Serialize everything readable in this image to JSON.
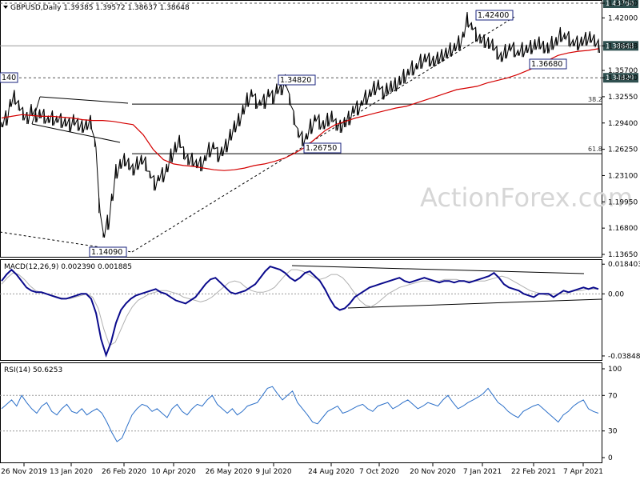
{
  "header": {
    "main": "GBPUSD,Daily  1.39385 1.39572 1.38637 1.38648",
    "macd": "MACD(12,26,9) 0.002390 0.001885",
    "rsi": "RSI(14) 50.6253"
  },
  "watermark": "ActionForex.com",
  "colors": {
    "price": "#000000",
    "ema": "#d40000",
    "macd": "#0a0a8c",
    "signal": "#b0b0b0",
    "rsi": "#2b6fc8",
    "tag": "#2f4f4f"
  },
  "chart_data": [
    {
      "type": "line",
      "panel": "price",
      "title": "GBPUSD,Daily",
      "ohlc_last": {
        "open": 1.39385,
        "high": 1.39572,
        "low": 1.38637,
        "close": 1.38648
      },
      "ylim": [
        1.1365,
        1.4376
      ],
      "y_ticks": [
        "1.43760",
        "1.42000",
        "1.38648",
        "1.35700",
        "1.34820",
        "1.32550",
        "1.29400",
        "1.26250",
        "1.23100",
        "1.19950",
        "1.16800",
        "1.13650"
      ],
      "x_ticks": [
        "26 Nov 2019",
        "13 Jan 2020",
        "26 Feb 2020",
        "10 Apr 2020",
        "26 May 2020",
        "9 Jul 2020",
        "24 Aug 2020",
        "7 Oct 2020",
        "20 Nov 2020",
        "7 Jan 2021",
        "22 Feb 2021",
        "7 Apr 2021"
      ],
      "series": [
        {
          "values": [
            1.292,
            1.3,
            1.318,
            1.325,
            1.315,
            1.305,
            1.3,
            1.31,
            1.303,
            1.305,
            1.302,
            1.298,
            1.3,
            1.298,
            1.297,
            1.295,
            1.292,
            1.298,
            1.292,
            1.29,
            1.292,
            1.295,
            1.27,
            1.195,
            1.16,
            1.175,
            1.205,
            1.236,
            1.245,
            1.25,
            1.245,
            1.238,
            1.246,
            1.25,
            1.245,
            1.232,
            1.222,
            1.228,
            1.232,
            1.24,
            1.255,
            1.265,
            1.272,
            1.258,
            1.25,
            1.25,
            1.245,
            1.245,
            1.252,
            1.262,
            1.267,
            1.256,
            1.26,
            1.267,
            1.28,
            1.29,
            1.298,
            1.31,
            1.322,
            1.33,
            1.32,
            1.318,
            1.32,
            1.33,
            1.325,
            1.335,
            1.335,
            1.345,
            1.322,
            1.3,
            1.282,
            1.275,
            1.278,
            1.29,
            1.3,
            1.295,
            1.292,
            1.298,
            1.302,
            1.292,
            1.29,
            1.295,
            1.3,
            1.31,
            1.312,
            1.318,
            1.325,
            1.33,
            1.336,
            1.34,
            1.33,
            1.335,
            1.338,
            1.34,
            1.345,
            1.35,
            1.355,
            1.36,
            1.362,
            1.368,
            1.372,
            1.37,
            1.368,
            1.372,
            1.375,
            1.378,
            1.382,
            1.385,
            1.39,
            1.4,
            1.418,
            1.41,
            1.4,
            1.395,
            1.392,
            1.39,
            1.388,
            1.378,
            1.373,
            1.38,
            1.385,
            1.382,
            1.378,
            1.382,
            1.383,
            1.385,
            1.388,
            1.39,
            1.385,
            1.384,
            1.39,
            1.392,
            1.4,
            1.398,
            1.395,
            1.39,
            1.39,
            1.392,
            1.395,
            1.397,
            1.393,
            1.386
          ]
        },
        {
          "values": [
            1.3,
            1.302,
            1.304,
            1.303,
            1.302,
            1.302,
            1.301,
            1.3,
            1.298,
            1.297,
            1.297,
            1.296,
            1.294,
            1.292,
            1.28,
            1.262,
            1.25,
            1.245,
            1.243,
            1.242,
            1.24,
            1.238,
            1.237,
            1.238,
            1.24,
            1.243,
            1.245,
            1.248,
            1.252,
            1.258,
            1.265,
            1.275,
            1.285,
            1.292,
            1.296,
            1.3,
            1.303,
            1.306,
            1.309,
            1.312,
            1.314,
            1.318,
            1.322,
            1.326,
            1.33,
            1.334,
            1.336,
            1.338,
            1.342,
            1.345,
            1.348,
            1.352,
            1.357,
            1.362,
            1.369,
            1.375,
            1.378,
            1.38,
            1.381,
            1.383
          ]
        }
      ],
      "annotations": [
        {
          "label": "1.14090",
          "value": 1.1409
        },
        {
          "label": "1.34820",
          "value": 1.3482
        },
        {
          "label": "1.26750",
          "value": 1.2675
        },
        {
          "label": "1.42400",
          "value": 1.424
        },
        {
          "label": "1.36680",
          "value": 1.3668
        },
        {
          "label": "140",
          "value": 1.345
        },
        {
          "label": "38.2",
          "value": 1.3166
        },
        {
          "label": "61.8",
          "value": 1.2572
        }
      ],
      "price_tags": [
        {
          "label": "1.43760",
          "value": 1.4376
        },
        {
          "label": "1.38648",
          "value": 1.38648
        },
        {
          "label": "1.34820",
          "value": 1.3482
        }
      ]
    },
    {
      "type": "line",
      "panel": "macd",
      "title": "MACD(12,26,9)",
      "ylim": [
        -0.04,
        0.02
      ],
      "y_ticks": [
        "0.018403",
        "0.00",
        "-0.038483"
      ],
      "series": [
        {
          "values": [
            0.008,
            0.012,
            0.015,
            0.012,
            0.008,
            0.004,
            0.002,
            0.001,
            0.001,
            0.0,
            -0.001,
            -0.002,
            -0.003,
            -0.003,
            -0.002,
            -0.001,
            0.0,
            0.0,
            -0.003,
            -0.012,
            -0.028,
            -0.038,
            -0.03,
            -0.018,
            -0.01,
            -0.006,
            -0.003,
            -0.001,
            0.0,
            0.001,
            0.002,
            0.003,
            0.001,
            0.0,
            -0.002,
            -0.004,
            -0.005,
            -0.006,
            -0.004,
            -0.002,
            0.002,
            0.006,
            0.009,
            0.01,
            0.007,
            0.004,
            0.001,
            0.0,
            0.001,
            0.002,
            0.004,
            0.006,
            0.01,
            0.014,
            0.017,
            0.016,
            0.015,
            0.013,
            0.01,
            0.008,
            0.01,
            0.013,
            0.014,
            0.011,
            0.008,
            0.003,
            -0.003,
            -0.008,
            -0.01,
            -0.009,
            -0.006,
            -0.002,
            0.0,
            0.002,
            0.004,
            0.005,
            0.006,
            0.007,
            0.008,
            0.009,
            0.01,
            0.008,
            0.007,
            0.008,
            0.009,
            0.01,
            0.009,
            0.008,
            0.007,
            0.008,
            0.008,
            0.007,
            0.008,
            0.008,
            0.007,
            0.008,
            0.009,
            0.01,
            0.011,
            0.013,
            0.01,
            0.006,
            0.004,
            0.003,
            0.002,
            0.0,
            -0.001,
            -0.002,
            0.0,
            0.0,
            0.0,
            -0.002,
            0.0,
            0.002,
            0.001,
            0.002,
            0.003,
            0.004,
            0.003,
            0.004,
            0.003
          ]
        },
        {
          "values": [
            0.006,
            0.01,
            0.013,
            0.012,
            0.009,
            0.005,
            0.002,
            0.001,
            0.0,
            -0.001,
            -0.002,
            -0.003,
            -0.003,
            -0.002,
            -0.001,
            0.0,
            -0.002,
            -0.009,
            -0.022,
            -0.032,
            -0.03,
            -0.022,
            -0.014,
            -0.008,
            -0.004,
            -0.002,
            0.0,
            0.001,
            0.002,
            0.002,
            0.001,
            0.0,
            -0.002,
            -0.003,
            -0.004,
            -0.005,
            -0.004,
            -0.002,
            0.001,
            0.004,
            0.007,
            0.008,
            0.007,
            0.004,
            0.002,
            0.001,
            0.001,
            0.002,
            0.004,
            0.008,
            0.012,
            0.015,
            0.015,
            0.014,
            0.012,
            0.01,
            0.009,
            0.01,
            0.012,
            0.012,
            0.01,
            0.006,
            0.001,
            -0.004,
            -0.007,
            -0.008,
            -0.006,
            -0.003,
            0.0,
            0.002,
            0.004,
            0.005,
            0.006,
            0.007,
            0.008,
            0.008,
            0.008,
            0.008,
            0.009,
            0.009,
            0.009,
            0.008,
            0.008,
            0.008,
            0.008,
            0.008,
            0.009,
            0.01,
            0.011,
            0.01,
            0.008,
            0.006,
            0.004,
            0.002,
            0.001,
            0.0,
            -0.001,
            0.0,
            0.0,
            0.0,
            0.001,
            0.002,
            0.002,
            0.003,
            0.003,
            0.003
          ]
        }
      ]
    },
    {
      "type": "line",
      "panel": "rsi",
      "title": "RSI(14)",
      "ylim": [
        0,
        100
      ],
      "y_ticks": [
        "100",
        "70",
        "30",
        "0"
      ],
      "series": [
        {
          "values": [
            55,
            60,
            65,
            58,
            70,
            62,
            55,
            50,
            58,
            62,
            52,
            48,
            55,
            60,
            52,
            50,
            55,
            48,
            52,
            55,
            50,
            40,
            28,
            18,
            22,
            35,
            48,
            55,
            60,
            58,
            52,
            55,
            50,
            45,
            55,
            60,
            52,
            48,
            55,
            60,
            58,
            65,
            70,
            60,
            55,
            50,
            55,
            48,
            52,
            58,
            60,
            62,
            70,
            78,
            80,
            72,
            65,
            70,
            75,
            62,
            55,
            48,
            40,
            38,
            45,
            52,
            55,
            58,
            50,
            52,
            55,
            58,
            60,
            55,
            52,
            58,
            60,
            62,
            55,
            58,
            62,
            65,
            60,
            55,
            58,
            62,
            60,
            58,
            65,
            70,
            62,
            55,
            58,
            62,
            65,
            68,
            72,
            78,
            70,
            62,
            58,
            52,
            48,
            45,
            52,
            55,
            58,
            60,
            55,
            50,
            45,
            40,
            48,
            52,
            58,
            62,
            65,
            55,
            52,
            50
          ]
        }
      ]
    }
  ]
}
